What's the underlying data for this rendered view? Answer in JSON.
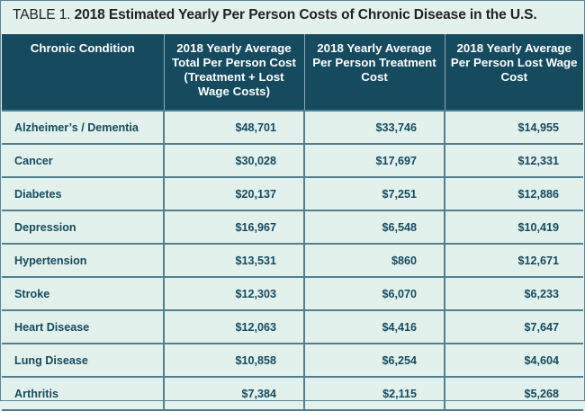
{
  "caption": {
    "label": "TABLE 1.",
    "title": "2018 Estimated Yearly Per Person Costs of Chronic Disease in the U.S."
  },
  "colors": {
    "header_bg": "#164a5f",
    "header_text": "#ffffff",
    "body_bg": "#e3f1ec",
    "body_text": "#164a5f",
    "grid_line": "#527f8f"
  },
  "columns": [
    "Chronic Condition",
    "2018 Yearly Average Total Per Person Cost (Treatment + Lost Wage Costs)",
    "2018 Yearly Average Per Person Treatment Cost",
    "2018 Yearly Average Per Person Lost Wage Cost"
  ],
  "rows": [
    {
      "condition": "Alzheimer’s / Dementia",
      "total": "$48,701",
      "treatment": "$33,746",
      "lost_wage": "$14,955"
    },
    {
      "condition": "Cancer",
      "total": "$30,028",
      "treatment": "$17,697",
      "lost_wage": "$12,331"
    },
    {
      "condition": "Diabetes",
      "total": "$20,137",
      "treatment": "$7,251",
      "lost_wage": "$12,886"
    },
    {
      "condition": "Depression",
      "total": "$16,967",
      "treatment": "$6,548",
      "lost_wage": "$10,419"
    },
    {
      "condition": "Hypertension",
      "total": "$13,531",
      "treatment": "$860",
      "lost_wage": "$12,671"
    },
    {
      "condition": "Stroke",
      "total": "$12,303",
      "treatment": "$6,070",
      "lost_wage": "$6,233"
    },
    {
      "condition": "Heart Disease",
      "total": "$12,063",
      "treatment": "$4,416",
      "lost_wage": "$7,647"
    },
    {
      "condition": "Lung Disease",
      "total": "$10,858",
      "treatment": "$6,254",
      "lost_wage": "$4,604"
    },
    {
      "condition": "Arthritis",
      "total": "$7,384",
      "treatment": "$2,115",
      "lost_wage": "$5,268"
    }
  ]
}
